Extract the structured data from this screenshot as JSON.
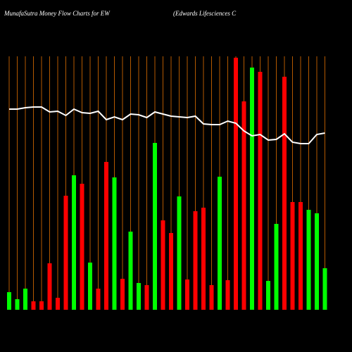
{
  "title": "MunafaSutra  Money Flow  Charts for EW",
  "subtitle": "(Edwards Lifesciences C",
  "chart_data": {
    "type": "bar",
    "categories": [
      null,
      null,
      null,
      null,
      null,
      null,
      null,
      null,
      null,
      null,
      null,
      null,
      null,
      null,
      null,
      null,
      null,
      null,
      null,
      null,
      null,
      null,
      null,
      null,
      null,
      null,
      null,
      null,
      null,
      null,
      null,
      null,
      null,
      null,
      null,
      null,
      null,
      null,
      null,
      null
    ],
    "values": [
      25,
      15,
      30,
      12,
      12,
      66,
      17,
      162,
      191,
      179,
      67,
      30,
      210,
      188,
      44,
      111,
      38,
      35,
      237,
      127,
      109,
      161,
      43,
      140,
      145,
      35,
      189,
      42,
      358,
      296,
      344,
      338,
      41,
      122,
      331,
      153,
      153,
      142,
      137,
      59
    ],
    "colors": [
      "#00ff00",
      "#00ff00",
      "#00ff00",
      "#ff0000",
      "#ff0000",
      "#ff0000",
      "#ff0000",
      "#ff0000",
      "#00ff00",
      "#ff0000",
      "#00ff00",
      "#ff0000",
      "#ff0000",
      "#00ff00",
      "#ff0000",
      "#00ff00",
      "#00ff00",
      "#ff0000",
      "#00ff00",
      "#ff0000",
      "#ff0000",
      "#00ff00",
      "#ff0000",
      "#ff0000",
      "#ff0000",
      "#ff0000",
      "#00ff00",
      "#ff0000",
      "#ff0000",
      "#ff0000",
      "#00ff00",
      "#ff0000",
      "#00ff00",
      "#00ff00",
      "#ff0000",
      "#ff0000",
      "#ff0000",
      "#00ff00",
      "#00ff00",
      "#00ff00"
    ],
    "line_values": [
      285,
      285,
      287,
      288,
      288,
      281,
      282,
      276,
      285,
      280,
      279,
      282,
      270,
      274,
      270,
      278,
      277,
      273,
      281,
      278,
      275,
      274,
      273,
      275,
      264,
      263,
      263,
      268,
      265,
      254,
      247,
      249,
      241,
      242,
      250,
      238,
      236,
      236,
      249,
      251
    ],
    "line_color": "#ffffff",
    "grid_color": "#b35900",
    "ylim": [
      0,
      360
    ]
  }
}
